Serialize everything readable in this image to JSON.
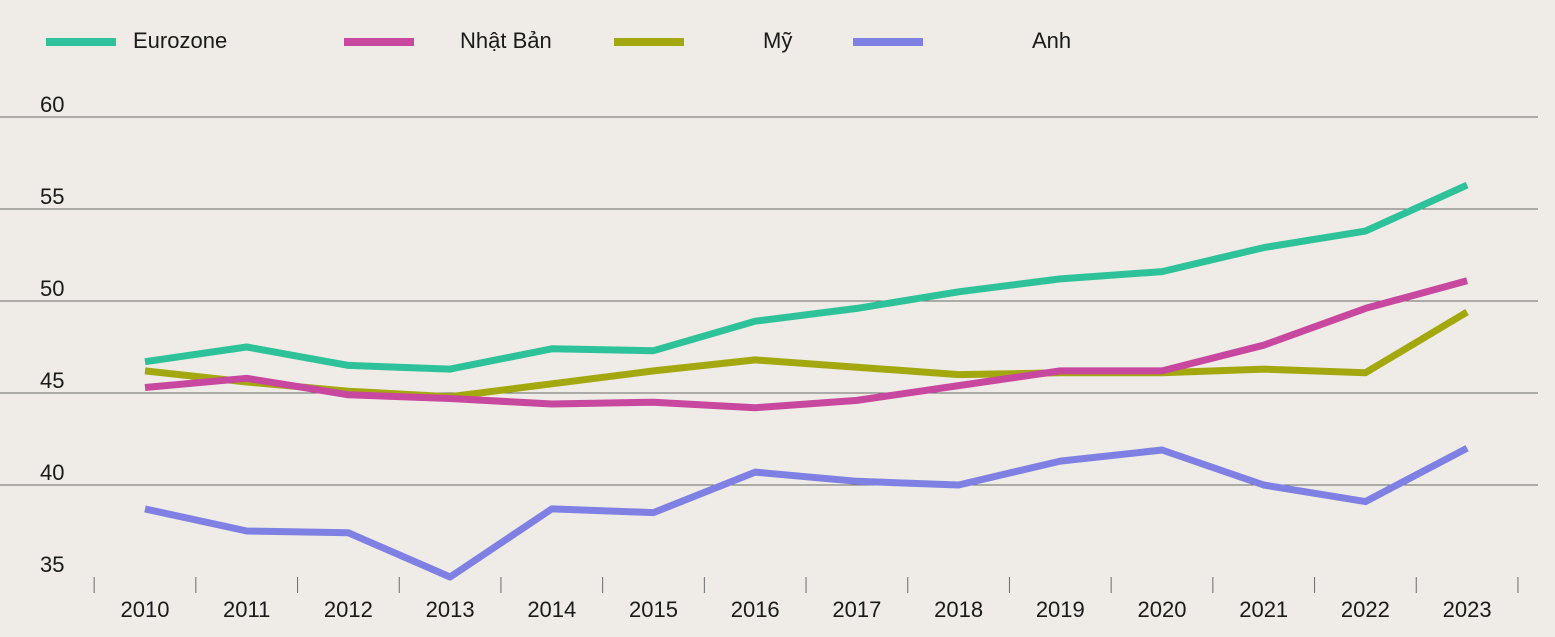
{
  "chart_data": {
    "type": "line",
    "title": "",
    "xlabel": "",
    "ylabel": "",
    "x": [
      "2010",
      "2011",
      "2012",
      "2013",
      "2014",
      "2015",
      "2016",
      "2017",
      "2018",
      "2019",
      "2020",
      "2021",
      "2022",
      "2023"
    ],
    "ylim": [
      35,
      60
    ],
    "yticks": [
      35,
      40,
      45,
      50,
      55,
      60
    ],
    "grid": true,
    "legend_position": "top",
    "series": [
      {
        "name": "Eurozone",
        "color": "#2ec29a",
        "values": [
          46.7,
          47.5,
          46.5,
          46.3,
          47.4,
          47.3,
          48.9,
          49.6,
          50.5,
          51.2,
          51.6,
          52.9,
          53.8,
          56.3
        ]
      },
      {
        "name": "Nhật Bản",
        "color": "#c8479f",
        "values": [
          45.3,
          45.8,
          44.9,
          44.7,
          44.4,
          44.5,
          44.2,
          44.6,
          45.4,
          46.2,
          46.2,
          47.6,
          49.6,
          51.1
        ]
      },
      {
        "name": "Mỹ",
        "color": "#a4a80f",
        "values": [
          46.2,
          45.6,
          45.1,
          44.8,
          45.5,
          46.2,
          46.8,
          46.4,
          46.0,
          46.1,
          46.1,
          46.3,
          46.1,
          49.4
        ]
      },
      {
        "name": "Anh",
        "color": "#7f80e3",
        "values": [
          38.7,
          37.5,
          37.4,
          35.0,
          38.7,
          38.5,
          40.7,
          40.2,
          40.0,
          41.3,
          41.9,
          40.0,
          39.1,
          42.0
        ]
      }
    ]
  }
}
